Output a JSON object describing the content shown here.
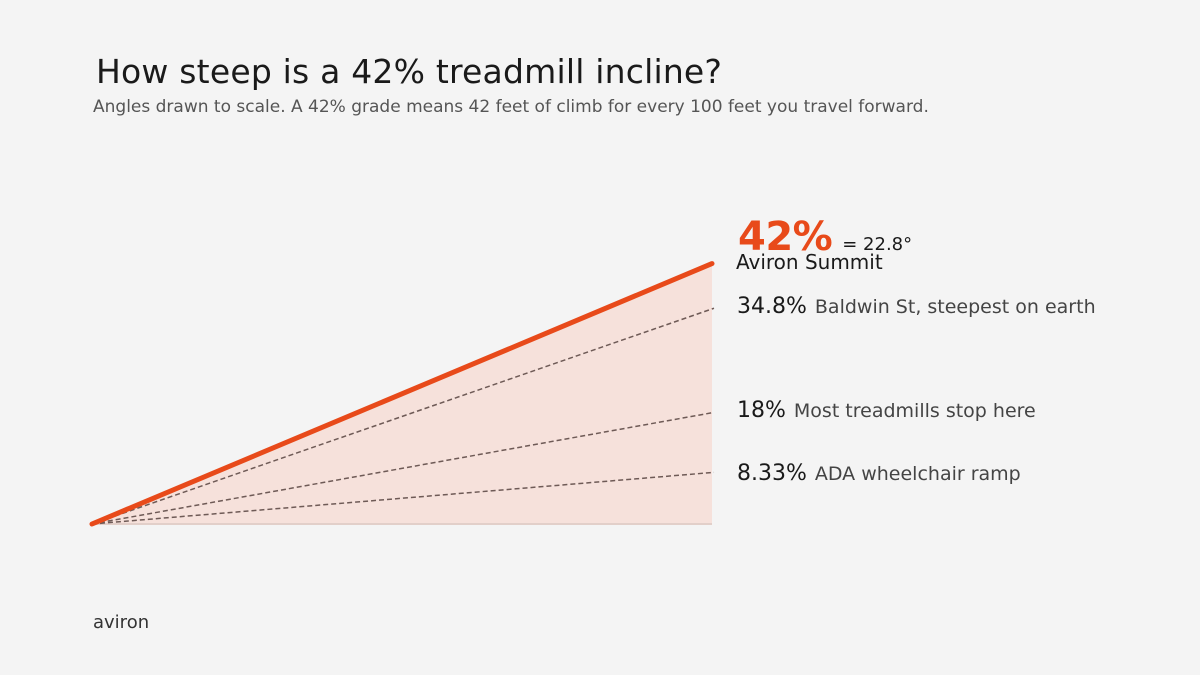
{
  "header": {
    "title": "How steep is a 42% treadmill incline?",
    "subtitle": "Angles drawn to scale. A 42% grade means 42 feet of climb for every 100 feet you travel forward."
  },
  "diagram": {
    "highlight": {
      "grade_label": "42%",
      "grade": 42,
      "angle_label": "= 22.8°",
      "name": "Aviron Summit",
      "color": "#e84a1a"
    },
    "references": [
      {
        "grade_label": "34.8%",
        "grade": 34.8,
        "description": "Baldwin St, steepest on earth"
      },
      {
        "grade_label": "18%",
        "grade": 18,
        "description": "Most treadmills stop here"
      },
      {
        "grade_label": "8.33%",
        "grade": 8.33,
        "description": "ADA wheelchair ramp"
      }
    ],
    "colors": {
      "fill": "#f6e1db",
      "reference_line": "#6e5a56",
      "baseline": "#e2cfc9"
    }
  },
  "footer": {
    "brand": "aviron"
  }
}
